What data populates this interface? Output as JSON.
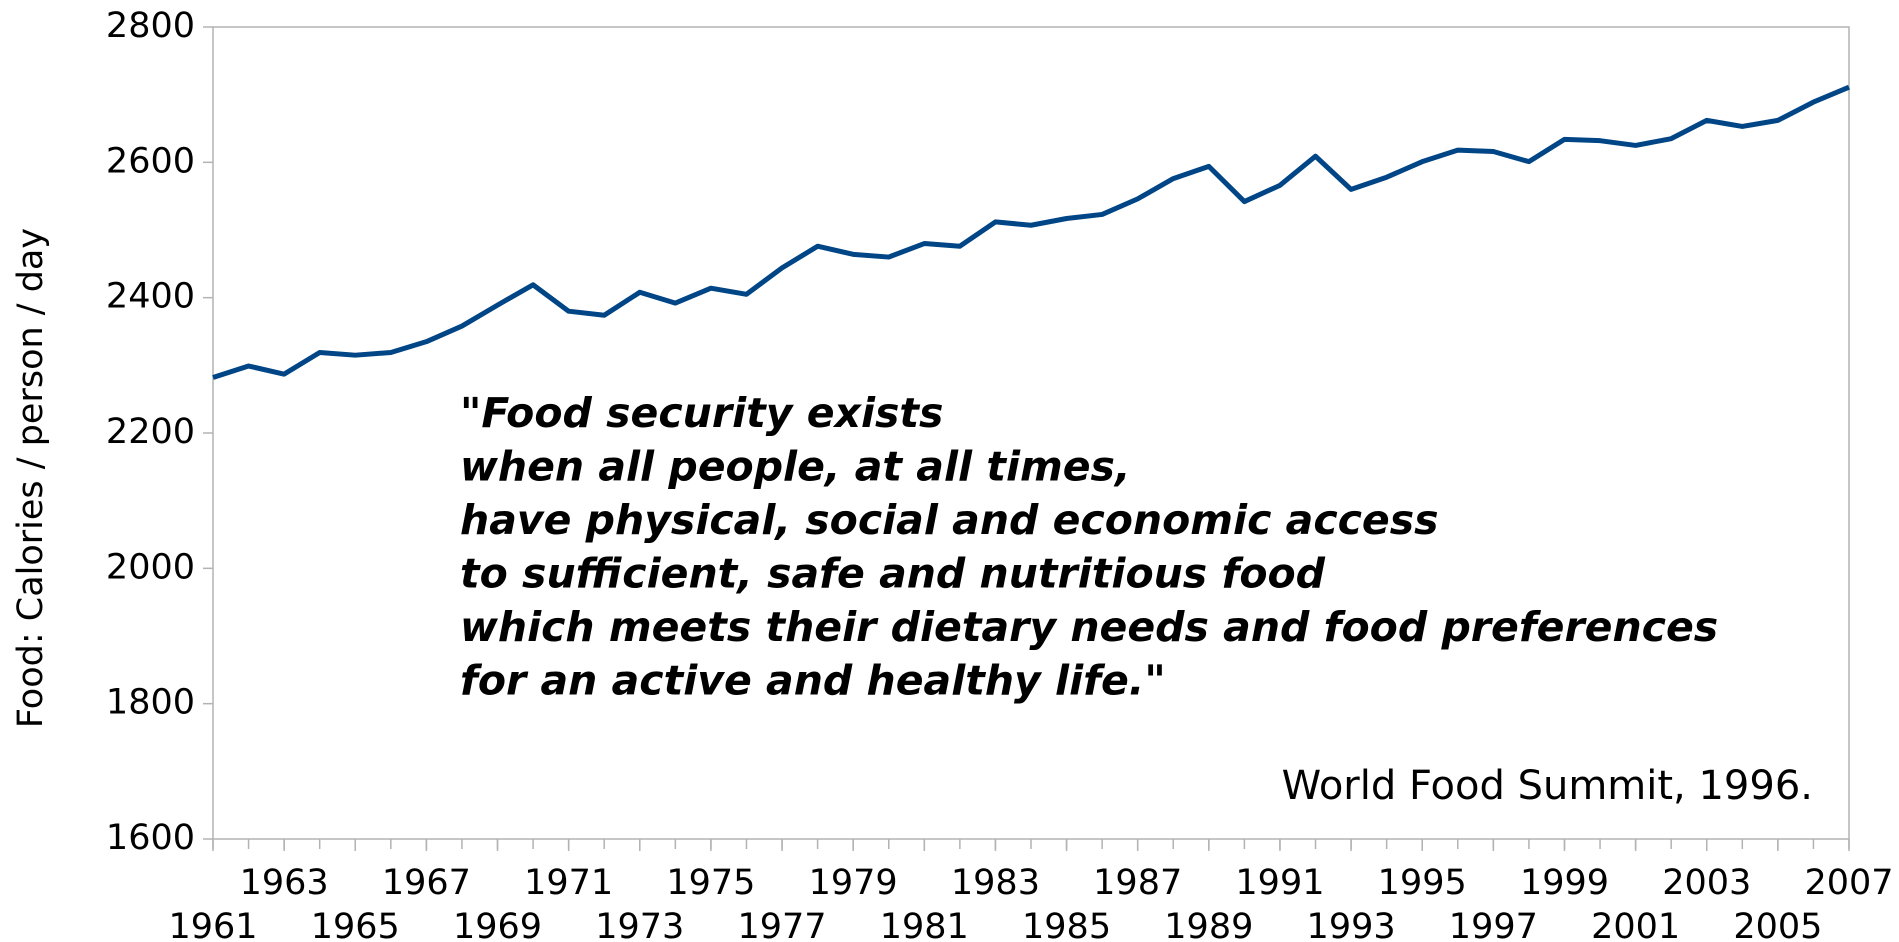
{
  "chart_data": {
    "type": "line",
    "y_label": "Food: Calories / person / day",
    "x": [
      1961,
      1962,
      1963,
      1964,
      1965,
      1966,
      1967,
      1968,
      1969,
      1970,
      1971,
      1972,
      1973,
      1974,
      1975,
      1976,
      1977,
      1978,
      1979,
      1980,
      1981,
      1982,
      1983,
      1984,
      1985,
      1986,
      1987,
      1988,
      1989,
      1990,
      1991,
      1992,
      1993,
      1994,
      1995,
      1996,
      1997,
      1998,
      1999,
      2000,
      2001,
      2002,
      2003,
      2004,
      2005,
      2006,
      2007
    ],
    "series": [
      {
        "color": "#004586",
        "values": [
          2282,
          2299,
          2287,
          2319,
          2315,
          2319,
          2335,
          2358,
          2389,
          2419,
          2380,
          2374,
          2408,
          2392,
          2414,
          2405,
          2444,
          2476,
          2464,
          2460,
          2480,
          2476,
          2512,
          2507,
          2517,
          2523,
          2546,
          2576,
          2594,
          2542,
          2566,
          2609,
          2560,
          2578,
          2601,
          2618,
          2616,
          2601,
          2634,
          2632,
          2625,
          2635,
          2662,
          2653,
          2662,
          2689,
          2711
        ]
      }
    ],
    "xlim": [
      1961,
      2007
    ],
    "xticks": [
      1961,
      1963,
      1965,
      1967,
      1969,
      1971,
      1973,
      1975,
      1977,
      1979,
      1981,
      1983,
      1985,
      1987,
      1989,
      1991,
      1993,
      1995,
      1997,
      1999,
      2001,
      2003,
      2005,
      2007
    ],
    "ylim": [
      1600,
      2800
    ],
    "yticks": [
      1600,
      1800,
      2000,
      2200,
      2400,
      2600,
      2800
    ],
    "grid": false,
    "annotations": {
      "quote": [
        "\"Food security exists",
        "when all people, at all times,",
        "have physical, social and economic access",
        "to sufficient, safe and nutritious food",
        "which meets their dietary needs and food preferences",
        "for an active and healthy life.\""
      ],
      "source": "World Food Summit, 1996."
    }
  }
}
